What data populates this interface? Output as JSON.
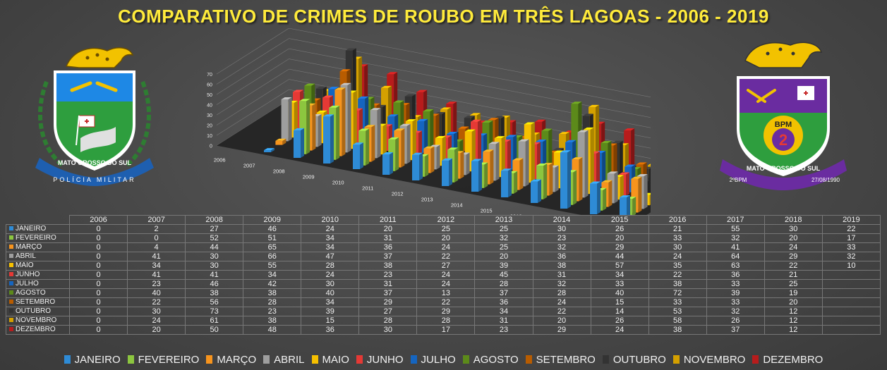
{
  "title": "COMPARATIVO DE CRIMES DE ROUBO EM TRÊS LAGOAS - 2006 - 2019",
  "colors": {
    "JANEIRO": "#2e8bd6",
    "FEVEREIRO": "#8cc63f",
    "MARÇO": "#f7941d",
    "ABRIL": "#9e9e9e",
    "MAIO": "#f6c000",
    "JUNHO": "#e53935",
    "JULHO": "#1565c0",
    "AGOSTO": "#5c8a1a",
    "SETEMBRO": "#b85c00",
    "OUTUBRO": "#333333",
    "NOVEMBRO": "#d4a000",
    "DEZEMBRO": "#b71c1c"
  },
  "logos": {
    "left": {
      "text_top": "MATO GROSSO DO SUL",
      "text_bottom": "POLÍCIA MILITAR"
    },
    "right": {
      "badge": "BPM",
      "number": "2",
      "ribbon": "MATO GROSSO DO SUL",
      "left_tag": "2ºBPM",
      "right_tag": "27/08/1990"
    }
  },
  "chart_data": {
    "type": "bar",
    "subtype": "3d-column",
    "title": "COMPARATIVO DE CRIMES DE ROUBO EM TRÊS LAGOAS - 2006 - 2019",
    "categories": [
      "2006",
      "2007",
      "2008",
      "2009",
      "2010",
      "2011",
      "2012",
      "2013",
      "2014",
      "2015",
      "2016",
      "2017",
      "2018",
      "2019"
    ],
    "ylim": [
      0,
      70
    ],
    "yticks": [
      0,
      10,
      20,
      30,
      40,
      50,
      60,
      70
    ],
    "grid": true,
    "legend_position": "bottom",
    "series": [
      {
        "name": "JANEIRO",
        "values": [
          0,
          2,
          27,
          46,
          24,
          20,
          25,
          25,
          30,
          26,
          21,
          55,
          30,
          22
        ]
      },
      {
        "name": "FEVEREIRO",
        "values": [
          0,
          0,
          52,
          51,
          34,
          31,
          20,
          32,
          23,
          20,
          33,
          32,
          20,
          17
        ]
      },
      {
        "name": "MARÇO",
        "values": [
          0,
          4,
          44,
          65,
          34,
          36,
          24,
          25,
          32,
          29,
          30,
          41,
          24,
          33
        ]
      },
      {
        "name": "ABRIL",
        "values": [
          0,
          41,
          30,
          66,
          47,
          37,
          22,
          20,
          36,
          44,
          24,
          64,
          29,
          32
        ]
      },
      {
        "name": "MAIO",
        "values": [
          0,
          34,
          30,
          55,
          28,
          38,
          27,
          39,
          38,
          57,
          35,
          63,
          22,
          10
        ]
      },
      {
        "name": "JUNHO",
        "values": [
          0,
          41,
          41,
          34,
          24,
          23,
          24,
          45,
          31,
          34,
          22,
          36,
          21,
          null
        ]
      },
      {
        "name": "JULHO",
        "values": [
          0,
          23,
          46,
          42,
          30,
          31,
          24,
          28,
          32,
          33,
          38,
          33,
          25,
          null
        ]
      },
      {
        "name": "AGOSTO",
        "values": [
          0,
          40,
          38,
          38,
          40,
          37,
          13,
          37,
          28,
          40,
          72,
          39,
          19,
          null
        ]
      },
      {
        "name": "SETEMBRO",
        "values": [
          0,
          22,
          56,
          28,
          34,
          29,
          22,
          36,
          24,
          15,
          33,
          33,
          20,
          null
        ]
      },
      {
        "name": "OUTUBRO",
        "values": [
          0,
          30,
          73,
          23,
          39,
          27,
          29,
          34,
          22,
          14,
          53,
          32,
          12,
          null
        ]
      },
      {
        "name": "NOVEMBRO",
        "values": [
          0,
          24,
          61,
          38,
          15,
          28,
          28,
          31,
          20,
          26,
          58,
          26,
          12,
          null
        ]
      },
      {
        "name": "DEZEMBRO",
        "values": [
          0,
          20,
          50,
          48,
          36,
          30,
          17,
          23,
          29,
          24,
          38,
          37,
          12,
          null
        ]
      }
    ]
  }
}
